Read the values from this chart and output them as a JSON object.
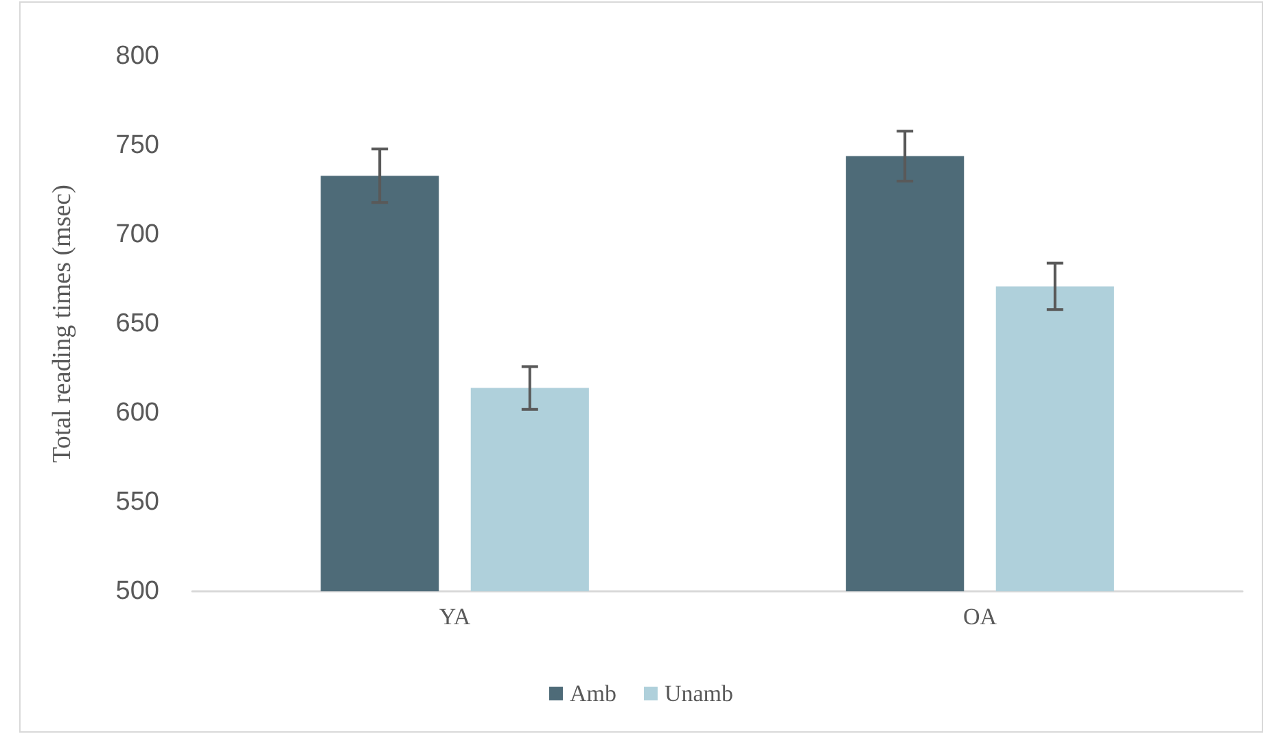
{
  "chart_data": {
    "type": "bar",
    "ylabel": "Total reading times (msec)",
    "categories": [
      "YA",
      "OA"
    ],
    "series": [
      {
        "name": "Amb",
        "color": "#4e6b78",
        "values": [
          733,
          744
        ],
        "errors": [
          15,
          14
        ]
      },
      {
        "name": "Unamb",
        "color": "#afd0db",
        "values": [
          614,
          671
        ],
        "errors": [
          12,
          13
        ]
      }
    ],
    "ylim": [
      500,
      800
    ],
    "yticks": [
      500,
      550,
      600,
      650,
      700,
      750,
      800
    ],
    "legend": "bottom"
  }
}
